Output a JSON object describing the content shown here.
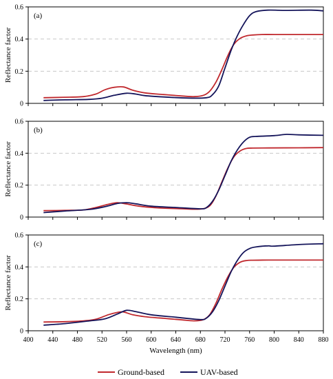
{
  "colors": {
    "ground": "#C0282D",
    "uav": "#14145A",
    "grid": "#C8C8C8",
    "axis": "#000000"
  },
  "legend": {
    "ground": "Ground-based",
    "uav": "UAV-based"
  },
  "chart_data": [
    {
      "type": "line",
      "panel_label": "(a)",
      "ylabel": "Reflectance factor",
      "xlabel": "",
      "xlim": [
        400,
        880
      ],
      "ylim": [
        0,
        0.6
      ],
      "yticks": [
        "0",
        "0.2",
        "0.4",
        "0.6"
      ],
      "xticks": [],
      "grid": "horizontal dashed",
      "series": [
        {
          "name": "Ground-based",
          "color": "#C0282D",
          "x": [
            425,
            460,
            490,
            510,
            525,
            540,
            555,
            570,
            590,
            620,
            650,
            670,
            685,
            695,
            705,
            715,
            725,
            735,
            745,
            755,
            765,
            780,
            800,
            840,
            880
          ],
          "y": [
            0.035,
            0.038,
            0.042,
            0.058,
            0.085,
            0.1,
            0.102,
            0.082,
            0.065,
            0.055,
            0.046,
            0.042,
            0.05,
            0.075,
            0.13,
            0.21,
            0.3,
            0.37,
            0.405,
            0.42,
            0.425,
            0.428,
            0.428,
            0.428,
            0.428
          ]
        },
        {
          "name": "UAV-based",
          "color": "#14145A",
          "x": [
            425,
            460,
            500,
            520,
            540,
            560,
            575,
            590,
            620,
            660,
            690,
            700,
            710,
            720,
            730,
            740,
            750,
            760,
            770,
            790,
            820,
            860,
            880
          ],
          "y": [
            0.018,
            0.022,
            0.025,
            0.032,
            0.05,
            0.063,
            0.058,
            0.048,
            0.04,
            0.033,
            0.035,
            0.055,
            0.11,
            0.22,
            0.33,
            0.42,
            0.49,
            0.545,
            0.57,
            0.58,
            0.578,
            0.58,
            0.575
          ]
        }
      ]
    },
    {
      "type": "line",
      "panel_label": "(b)",
      "ylabel": "Reflectance factor",
      "xlabel": "",
      "xlim": [
        400,
        880
      ],
      "ylim": [
        0,
        0.6
      ],
      "yticks": [
        "0",
        "0.2",
        "0.4",
        "0.6"
      ],
      "xticks": [],
      "grid": "horizontal dashed",
      "series": [
        {
          "name": "Ground-based",
          "color": "#C0282D",
          "x": [
            425,
            460,
            490,
            510,
            530,
            545,
            560,
            580,
            610,
            650,
            680,
            695,
            705,
            715,
            725,
            735,
            745,
            755,
            765,
            790,
            840,
            880
          ],
          "y": [
            0.04,
            0.042,
            0.045,
            0.06,
            0.08,
            0.09,
            0.082,
            0.068,
            0.058,
            0.052,
            0.05,
            0.07,
            0.13,
            0.22,
            0.31,
            0.38,
            0.415,
            0.43,
            0.432,
            0.433,
            0.434,
            0.435
          ]
        },
        {
          "name": "UAV-based",
          "color": "#14145A",
          "x": [
            425,
            460,
            500,
            525,
            545,
            560,
            575,
            600,
            640,
            680,
            690,
            700,
            710,
            720,
            730,
            740,
            750,
            760,
            770,
            800,
            820,
            840,
            880
          ],
          "y": [
            0.028,
            0.038,
            0.048,
            0.065,
            0.085,
            0.09,
            0.083,
            0.068,
            0.06,
            0.052,
            0.06,
            0.1,
            0.17,
            0.26,
            0.35,
            0.42,
            0.47,
            0.5,
            0.505,
            0.51,
            0.518,
            0.515,
            0.512
          ]
        }
      ]
    },
    {
      "type": "line",
      "panel_label": "(c)",
      "ylabel": "Reflectance factor",
      "xlabel": "Wavelength (nm)",
      "xlim": [
        400,
        880
      ],
      "ylim": [
        0,
        0.6
      ],
      "yticks": [
        "0",
        "0.2",
        "0.4",
        "0.6"
      ],
      "xticks": [
        "400",
        "440",
        "480",
        "520",
        "560",
        "600",
        "640",
        "680",
        "720",
        "760",
        "800",
        "840",
        "880"
      ],
      "grid": "horizontal dashed",
      "series": [
        {
          "name": "Ground-based",
          "color": "#C0282D",
          "x": [
            425,
            460,
            490,
            510,
            530,
            545,
            555,
            570,
            590,
            620,
            650,
            670,
            685,
            695,
            705,
            715,
            725,
            735,
            745,
            755,
            765,
            790,
            840,
            880
          ],
          "y": [
            0.055,
            0.057,
            0.062,
            0.072,
            0.1,
            0.115,
            0.118,
            0.1,
            0.088,
            0.078,
            0.068,
            0.062,
            0.07,
            0.1,
            0.17,
            0.26,
            0.34,
            0.4,
            0.43,
            0.44,
            0.442,
            0.443,
            0.443,
            0.443
          ]
        },
        {
          "name": "UAV-based",
          "color": "#14145A",
          "x": [
            425,
            460,
            500,
            525,
            545,
            560,
            575,
            600,
            640,
            680,
            690,
            700,
            710,
            720,
            730,
            740,
            750,
            760,
            770,
            790,
            800,
            840,
            880
          ],
          "y": [
            0.035,
            0.045,
            0.062,
            0.075,
            0.105,
            0.128,
            0.12,
            0.1,
            0.085,
            0.07,
            0.08,
            0.12,
            0.19,
            0.28,
            0.37,
            0.44,
            0.49,
            0.515,
            0.525,
            0.532,
            0.53,
            0.54,
            0.545
          ]
        }
      ]
    }
  ]
}
